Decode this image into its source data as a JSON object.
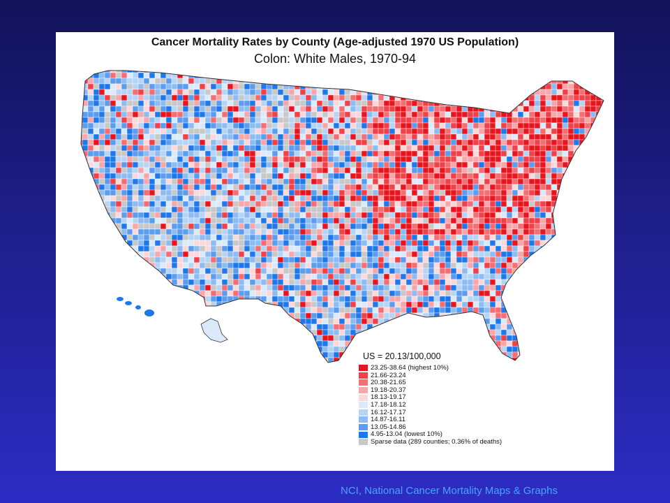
{
  "map": {
    "title_line1": "Cancer Mortality Rates by County (Age-adjusted 1970 US Population)",
    "title_line2": "Colon:  White Males, 1970-94",
    "us_rate": "US = 20.13/100,000",
    "legend": [
      {
        "label": "23.25-38.64 (highest 10%)",
        "color": "#e8141e"
      },
      {
        "label": "21.66-23.24",
        "color": "#f04048"
      },
      {
        "label": "20.38-21.65",
        "color": "#f46e74"
      },
      {
        "label": "19.18-20.37",
        "color": "#f8a6aa"
      },
      {
        "label": "18.13-19.17",
        "color": "#fcd8da"
      },
      {
        "label": "17.18-18.12",
        "color": "#dbeafa"
      },
      {
        "label": "16.12-17.17",
        "color": "#b6d4f6"
      },
      {
        "label": "14.87-16.11",
        "color": "#8cbcf2"
      },
      {
        "label": "13.05-14.86",
        "color": "#5c9cee"
      },
      {
        "label": "4.95-13.04 (lowest 10%)",
        "color": "#1e78ea"
      },
      {
        "label": "Sparse data (289 counties; 0.36% of deaths)",
        "color": "#c8c8c8"
      }
    ]
  },
  "footer": "NCI, National Cancer Mortality Maps & Graphs"
}
